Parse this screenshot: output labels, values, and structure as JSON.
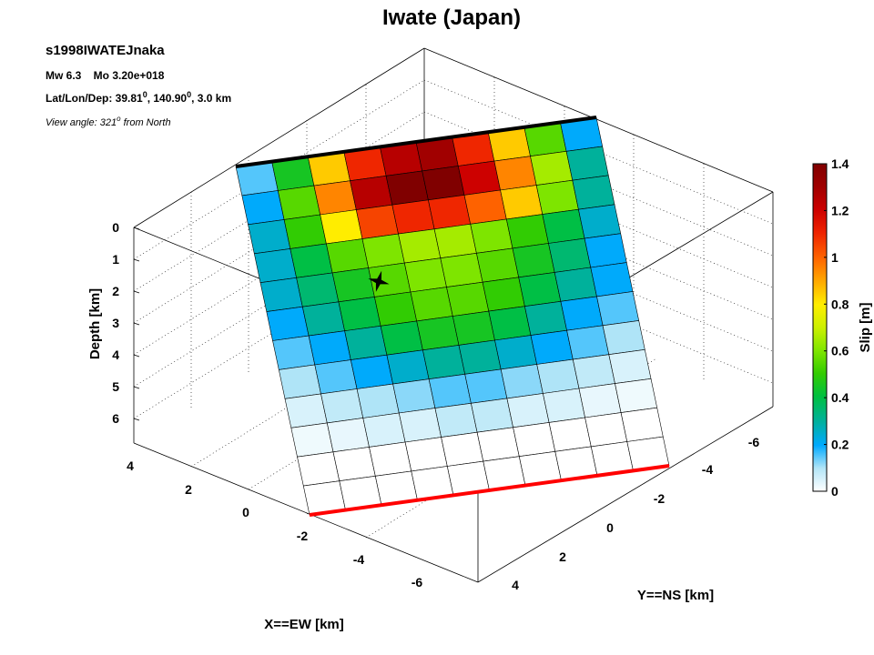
{
  "chart_data": {
    "type": "heatmap",
    "title": "Iwate (Japan)",
    "event_id": "s1998IWATEJnaka",
    "magnitude_line": "Mw 6.3    Mo 3.20e+018",
    "location_line_prefix": "Lat/Lon/Dep: 39.81",
    "location_lat_sup": "0",
    "location_line_mid": ", 140.90",
    "location_lon_sup": "0",
    "location_line_suffix": ", 3.0 km",
    "view_line_prefix": "View angle: 321",
    "view_angle_sup": "o",
    "view_line_suffix": " from North",
    "z_label": "Depth [km]",
    "x_label": "X==EW [km]",
    "y_label": "Y==NS [km]",
    "colorbar_label": "Slip [m]",
    "z_ticks": [
      "0",
      "1",
      "2",
      "3",
      "4",
      "5",
      "6"
    ],
    "x_ticks": [
      "4",
      "2",
      "0",
      "-2",
      "-4",
      "-6"
    ],
    "y_ticks": [
      "-6",
      "-4",
      "-2",
      "0",
      "2",
      "4"
    ],
    "colorbar_ticks": [
      "1.4",
      "1.2",
      "1",
      "0.8",
      "0.6",
      "0.4",
      "0.2",
      "0"
    ],
    "clim": [
      0,
      1.4
    ],
    "grid": true,
    "hypocenter": {
      "row": 4.5,
      "col": 3.2
    },
    "colors": {
      "top_edge": "#000000",
      "surface_trace": "#ff0000",
      "hypocenter_marker": "#000000"
    },
    "slip": [
      [
        0.15,
        0.45,
        0.85,
        1.1,
        1.25,
        1.3,
        1.1,
        0.85,
        0.55,
        0.2
      ],
      [
        0.2,
        0.55,
        0.95,
        1.25,
        1.4,
        1.4,
        1.2,
        0.95,
        0.65,
        0.3
      ],
      [
        0.25,
        0.5,
        0.8,
        1.05,
        1.1,
        1.1,
        1.0,
        0.85,
        0.6,
        0.3
      ],
      [
        0.25,
        0.4,
        0.55,
        0.6,
        0.65,
        0.65,
        0.6,
        0.5,
        0.4,
        0.25
      ],
      [
        0.25,
        0.35,
        0.45,
        0.55,
        0.6,
        0.6,
        0.55,
        0.45,
        0.35,
        0.2
      ],
      [
        0.2,
        0.3,
        0.4,
        0.5,
        0.55,
        0.55,
        0.5,
        0.4,
        0.3,
        0.2
      ],
      [
        0.15,
        0.2,
        0.3,
        0.4,
        0.45,
        0.45,
        0.4,
        0.3,
        0.2,
        0.15
      ],
      [
        0.1,
        0.15,
        0.2,
        0.25,
        0.3,
        0.3,
        0.25,
        0.2,
        0.15,
        0.1
      ],
      [
        0.05,
        0.08,
        0.1,
        0.12,
        0.15,
        0.15,
        0.12,
        0.1,
        0.08,
        0.05
      ],
      [
        0.02,
        0.03,
        0.05,
        0.05,
        0.08,
        0.08,
        0.05,
        0.05,
        0.03,
        0.02
      ],
      [
        0.0,
        0.0,
        0.0,
        0.0,
        0.0,
        0.0,
        0.0,
        0.0,
        0.0,
        0.0
      ],
      [
        0.0,
        0.0,
        0.0,
        0.0,
        0.0,
        0.0,
        0.0,
        0.0,
        0.0,
        0.0
      ]
    ]
  }
}
